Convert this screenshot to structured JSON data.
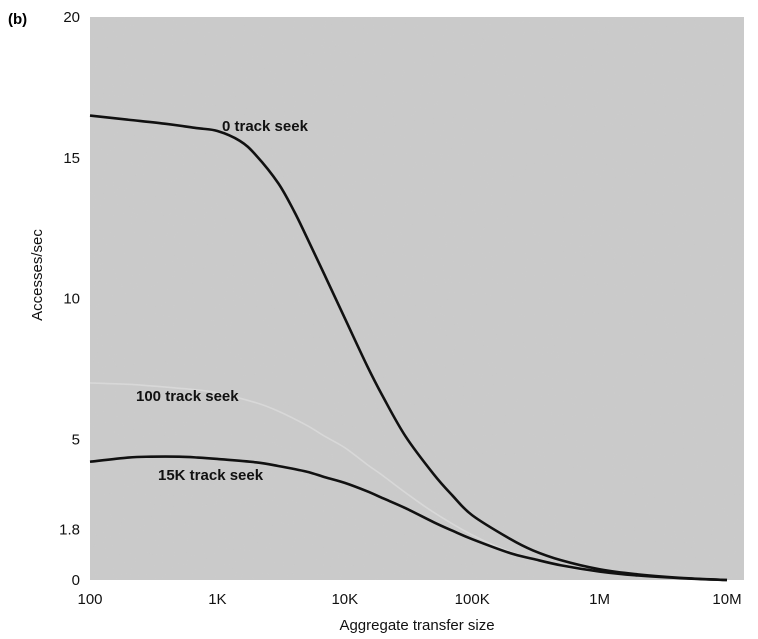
{
  "chart_data": {
    "panel_label": "(b)",
    "type": "line",
    "xlabel": "Aggregate transfer size",
    "ylabel": "Accesses/sec",
    "x_scale": "log",
    "x_ticks": [
      {
        "value": 100,
        "label": "100"
      },
      {
        "value": 1000,
        "label": "1K"
      },
      {
        "value": 10000,
        "label": "10K"
      },
      {
        "value": 100000,
        "label": "100K"
      },
      {
        "value": 1000000,
        "label": "1M"
      },
      {
        "value": 10000000,
        "label": "10M"
      }
    ],
    "y_ticks": [
      {
        "value": 0,
        "label": "0"
      },
      {
        "value": 1.8,
        "label": "1.8"
      },
      {
        "value": 5,
        "label": "5"
      },
      {
        "value": 10,
        "label": "10"
      },
      {
        "value": 15,
        "label": "15"
      },
      {
        "value": 20,
        "label": "20"
      }
    ],
    "xlim": [
      100,
      10000000
    ],
    "ylim": [
      0,
      20
    ],
    "grid": false,
    "background": "stippled gray",
    "series": [
      {
        "name": "0 track seek",
        "style": "bold",
        "x": [
          100,
          200,
          400,
          700,
          1000,
          1500,
          2000,
          3000,
          4000,
          5000,
          7000,
          10000,
          15000,
          20000,
          30000,
          50000,
          70000,
          100000,
          200000,
          300000,
          500000,
          1000000,
          2000000,
          5000000,
          10000000
        ],
        "y": [
          16.5,
          16.35,
          16.2,
          16.05,
          15.95,
          15.6,
          15.1,
          14.1,
          13.1,
          12.2,
          10.8,
          9.3,
          7.6,
          6.5,
          5.1,
          3.75,
          3.0,
          2.3,
          1.45,
          1.05,
          0.7,
          0.38,
          0.2,
          0.06,
          0.0
        ]
      },
      {
        "name": "100 track seek",
        "style": "faint",
        "x": [
          100,
          200,
          400,
          700,
          1000,
          2000,
          3000,
          5000,
          7000,
          10000,
          15000,
          20000,
          30000,
          50000,
          100000,
          200000,
          500000,
          1000000,
          3000000,
          10000000
        ],
        "y": [
          7.0,
          6.95,
          6.85,
          6.75,
          6.65,
          6.3,
          6.0,
          5.5,
          5.1,
          4.7,
          4.1,
          3.7,
          3.1,
          2.4,
          1.6,
          1.0,
          0.5,
          0.28,
          0.1,
          0.0
        ]
      },
      {
        "name": "15K track seek",
        "style": "bold",
        "x": [
          100,
          200,
          300,
          500,
          700,
          1000,
          2000,
          3000,
          5000,
          7000,
          10000,
          15000,
          20000,
          30000,
          50000,
          70000,
          100000,
          200000,
          300000,
          500000,
          1000000,
          2000000,
          5000000,
          10000000
        ],
        "y": [
          4.2,
          4.35,
          4.38,
          4.38,
          4.35,
          4.3,
          4.18,
          4.05,
          3.85,
          3.65,
          3.45,
          3.15,
          2.9,
          2.55,
          2.05,
          1.75,
          1.45,
          0.95,
          0.75,
          0.52,
          0.3,
          0.16,
          0.05,
          0.0
        ]
      }
    ],
    "annotations": [
      {
        "text": "0 track seek",
        "series": "0 track seek"
      },
      {
        "text": "100 track seek",
        "series": "100 track seek"
      },
      {
        "text": "15K track seek",
        "series": "15K track seek"
      }
    ]
  }
}
